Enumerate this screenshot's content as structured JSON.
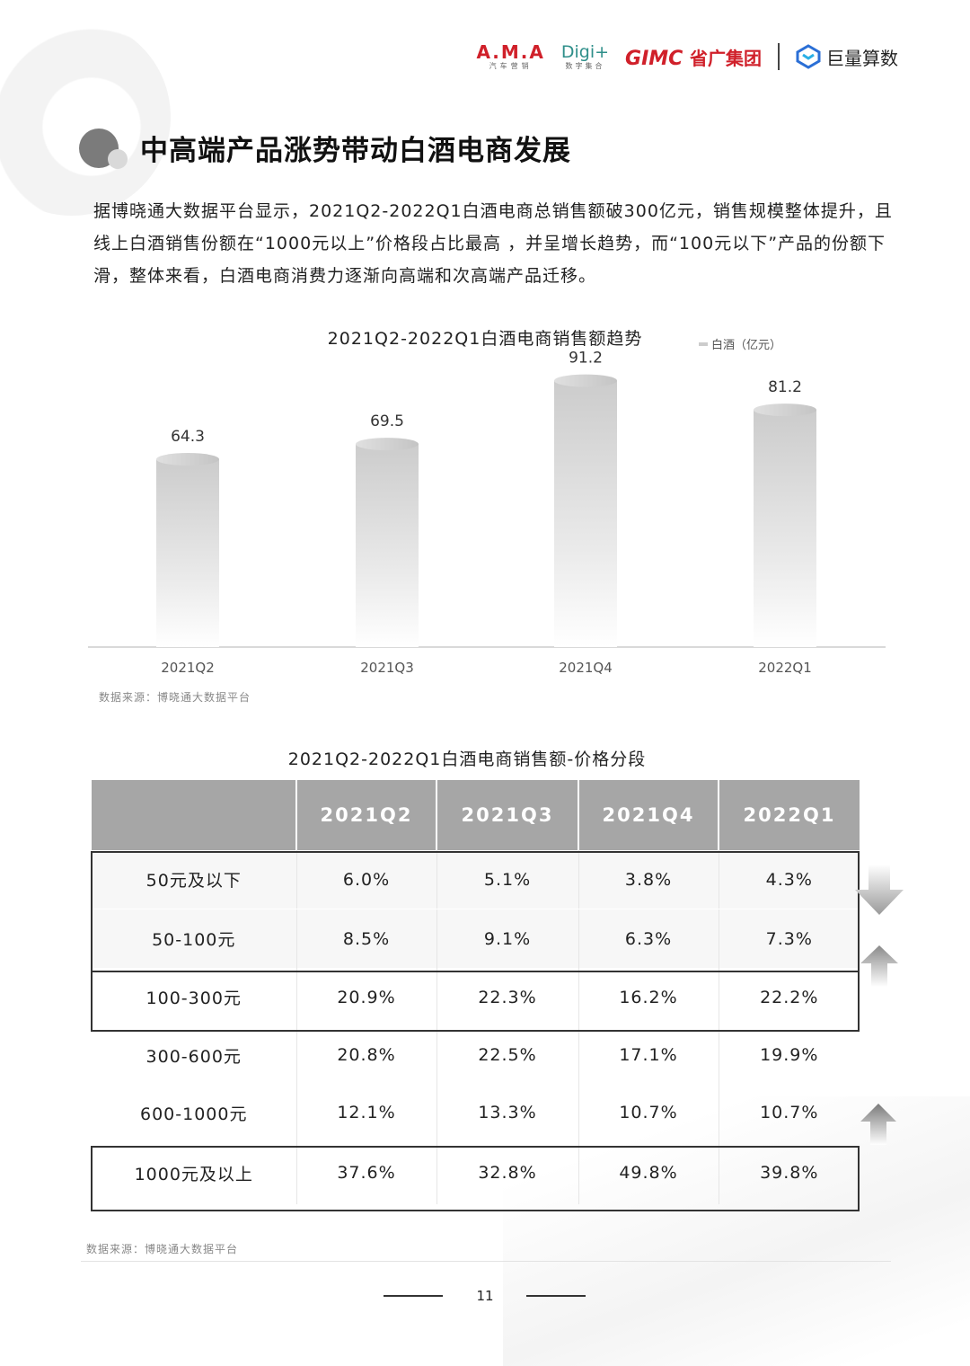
{
  "header": {
    "logos": {
      "ama": "A.M.A",
      "ama_sub": "汽车营销",
      "digi": "Digi+",
      "digi_sub": "数字集合",
      "gimc": "GIMC",
      "gimc_cn": "省广集团",
      "juliang": "巨量算数"
    }
  },
  "section": {
    "title": "中高端产品涨势带动白酒电商发展",
    "intro": "据博晓通大数据平台显示，2021Q2-2022Q1白酒电商总销售额破300亿元，销售规模整体提升，且线上白酒销售份额在“1000元以上”价格段占比最高 ，并呈增长趋势，而“100元以下”产品的份额下滑，整体来看，白酒电商消费力逐渐向高端和次高端产品迁移。"
  },
  "chart_data": {
    "type": "bar",
    "title": "2021Q2-2022Q1白酒电商销售额趋势",
    "legend": "白酒（亿元）",
    "legend_position": "top-right",
    "categories": [
      "2021Q2",
      "2021Q3",
      "2021Q4",
      "2022Q1"
    ],
    "values": [
      64.3,
      69.5,
      91.2,
      81.2
    ],
    "ylim": [
      0,
      100
    ],
    "grid": false,
    "bar_color": "#cccccc",
    "source": "数据来源：博晓通大数据平台"
  },
  "table": {
    "title": "2021Q2-2022Q1白酒电商销售额-价格分段",
    "headers": [
      "",
      "2021Q2",
      "2021Q3",
      "2021Q4",
      "2022Q1"
    ],
    "rows": [
      [
        "50元及以下",
        "6.0%",
        "5.1%",
        "3.8%",
        "4.3%"
      ],
      [
        "50-100元",
        "8.5%",
        "9.1%",
        "6.3%",
        "7.3%"
      ],
      [
        "100-300元",
        "20.9%",
        "22.3%",
        "16.2%",
        "22.2%"
      ],
      [
        "300-600元",
        "20.8%",
        "22.5%",
        "17.1%",
        "19.9%"
      ],
      [
        "600-1000元",
        "12.1%",
        "13.3%",
        "10.7%",
        "10.7%"
      ],
      [
        "1000元及以上",
        "37.6%",
        "32.8%",
        "49.8%",
        "39.8%"
      ]
    ],
    "trend_icons": [
      "arrow-down-icon",
      "arrow-up-icon",
      "arrow-up-icon"
    ],
    "header_color": "#a6a6a6",
    "source": "数据来源：博晓通大数据平台"
  },
  "footer": {
    "page_number": "11"
  }
}
